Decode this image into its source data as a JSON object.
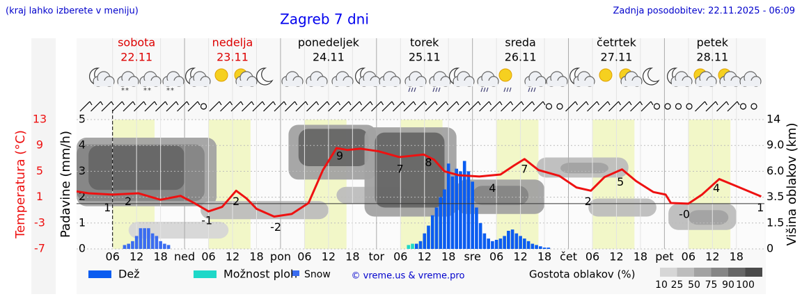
{
  "header": {
    "note": "(kraj lahko izberete v meniju)",
    "title": "Zagreb 7 dni",
    "updated": "Zadnja posodobitev: 22.11.2025 - 06:09",
    "copyright": "© vreme.us & vreme.pro"
  },
  "days": [
    {
      "name": "sobota",
      "date": "22.11",
      "color": "#dd0000"
    },
    {
      "name": "nedelja",
      "date": "23.11",
      "color": "#dd0000"
    },
    {
      "name": "ponedeljek",
      "date": "24.11",
      "color": "#000000"
    },
    {
      "name": "torek",
      "date": "25.11",
      "color": "#000000"
    },
    {
      "name": "sreda",
      "date": "26.11",
      "color": "#000000"
    },
    {
      "name": "četrtek",
      "date": "27.11",
      "color": "#000000"
    },
    {
      "name": "petek",
      "date": "28.11",
      "color": "#000000"
    }
  ],
  "chart_data": [
    {
      "type": "bar",
      "ylabel": "Padavine (mm/h)",
      "xlim": [
        -3,
        169
      ],
      "ylim": [
        0,
        5
      ],
      "yticks": [
        0,
        1,
        2,
        3,
        4,
        5
      ],
      "grid": true,
      "now": 6,
      "daylight": [
        [
          6,
          16.5
        ],
        [
          30,
          40.5
        ],
        [
          54,
          64.5
        ],
        [
          78,
          88.5
        ],
        [
          102,
          112.5
        ],
        [
          126,
          136.5
        ],
        [
          150,
          160.5
        ]
      ],
      "xticks": [
        {
          "value": 6,
          "label": "06"
        },
        12,
        18,
        {
          "value": 24,
          "label": "ned"
        },
        {
          "value": 30,
          "label": "06"
        },
        {
          "value": 36,
          "label": "12"
        },
        {
          "value": 42,
          "label": "18"
        },
        {
          "value": 48,
          "label": "pon"
        },
        {
          "value": 54,
          "label": "06"
        },
        {
          "value": 60,
          "label": "12"
        },
        {
          "value": 66,
          "label": "18"
        },
        {
          "value": 72,
          "label": "tor"
        },
        {
          "value": 78,
          "label": "06"
        },
        {
          "value": 84,
          "label": "12"
        },
        {
          "value": 90,
          "label": "18"
        },
        {
          "value": 96,
          "label": "sre"
        },
        {
          "value": 102,
          "label": "06"
        },
        {
          "value": 108,
          "label": "12"
        },
        {
          "value": 114,
          "label": "18"
        },
        {
          "value": 120,
          "label": "čet"
        },
        {
          "value": 126,
          "label": "06"
        },
        {
          "value": 132,
          "label": "12"
        },
        {
          "value": 138,
          "label": "18"
        },
        {
          "value": 144,
          "label": "pet"
        },
        {
          "value": 150,
          "label": "06"
        },
        {
          "value": 156,
          "label": "12"
        },
        {
          "value": 162,
          "label": "18"
        }
      ],
      "x": [
        9,
        10,
        11,
        12,
        13,
        14,
        15,
        16,
        17,
        18,
        19,
        20,
        80,
        81,
        82,
        83,
        84,
        85,
        86,
        87,
        88,
        89,
        90,
        91,
        92,
        93,
        94,
        95,
        96,
        97,
        98,
        99,
        100,
        101,
        102,
        103,
        104,
        105,
        106,
        107,
        108,
        109,
        110,
        111,
        112,
        113,
        114,
        115
      ],
      "series": [
        {
          "name": "Dež",
          "color": "#0a5cf0",
          "values": [
            null,
            null,
            null,
            null,
            null,
            null,
            null,
            null,
            null,
            null,
            null,
            null,
            null,
            null,
            0.2,
            0.3,
            0.6,
            0.9,
            1.3,
            1.6,
            2.0,
            2.3,
            3.3,
            2.8,
            3.1,
            3.0,
            3.4,
            3.0,
            2.6,
            1.6,
            1.0,
            0.6,
            0.4,
            0.3,
            0.35,
            0.4,
            0.5,
            0.7,
            0.75,
            0.6,
            0.5,
            0.4,
            0.3,
            0.2,
            0.15,
            0.1,
            0.05,
            0.05
          ]
        },
        {
          "name": "Možnost ploh",
          "color": "#1ed8c8",
          "values": [
            null,
            null,
            null,
            null,
            null,
            null,
            null,
            null,
            null,
            null,
            null,
            null,
            0.15,
            0.2,
            null,
            null,
            null,
            null,
            null,
            null,
            null,
            null,
            null,
            null,
            null,
            null,
            null,
            null,
            null,
            null,
            null,
            null,
            null,
            null,
            null,
            null,
            null,
            null,
            null,
            null,
            null,
            null,
            null,
            null,
            null,
            null,
            null,
            null
          ]
        },
        {
          "name": "Snow",
          "color": "#3a6cf0",
          "values": [
            0.15,
            0.2,
            0.3,
            0.5,
            0.8,
            0.8,
            0.8,
            0.6,
            0.5,
            0.3,
            0.2,
            0.15,
            null,
            null,
            null,
            null,
            null,
            null,
            null,
            null,
            null,
            null,
            null,
            null,
            null,
            null,
            null,
            null,
            null,
            null,
            null,
            null,
            null,
            null,
            null,
            null,
            null,
            null,
            null,
            null,
            null,
            null,
            null,
            null,
            null,
            null,
            null,
            null
          ]
        }
      ]
    },
    {
      "type": "line",
      "ylabel": "Temperatura (°C)",
      "color": "#ee1111",
      "ylim": [
        -7,
        13
      ],
      "yticks": [
        -7,
        -3,
        1,
        5,
        9,
        13
      ],
      "zero_line": 0,
      "x": [
        -3,
        0,
        6,
        12.5,
        18,
        23,
        26.4,
        30,
        33.4,
        36.9,
        39.5,
        42,
        46.4,
        50.8,
        55,
        58.6,
        62,
        64.7,
        68,
        72.5,
        77.7,
        83.8,
        86.4,
        89,
        92.5,
        97.7,
        103,
        106.4,
        109,
        112.5,
        117.7,
        122,
        125.6,
        129,
        133.4,
        136.9,
        141.2,
        144.3,
        145.6,
        150,
        153.4,
        157.7,
        162,
        168.2
      ],
      "values": [
        1.9,
        1.6,
        1.4,
        1.6,
        0.6,
        1.2,
        0.1,
        -1.2,
        -0.5,
        2.0,
        0.8,
        -0.8,
        -2.0,
        -1.6,
        0.1,
        5.2,
        8.6,
        8.3,
        8.5,
        8.1,
        7.2,
        7.6,
        6.8,
        5.0,
        4.4,
        4.2,
        4.5,
        5.9,
        6.9,
        5.2,
        4.3,
        2.5,
        2.0,
        4.1,
        5.3,
        3.5,
        1.8,
        1.4,
        0.1,
        0.0,
        1.4,
        3.8,
        2.7,
        1.1
      ],
      "point_labels": [
        {
          "x": 4.7,
          "value": 1
        },
        {
          "x": 9.9,
          "value": 2
        },
        {
          "x": 29.6,
          "value": -1
        },
        {
          "x": 36.9,
          "value": 2
        },
        {
          "x": 46.8,
          "value": -2
        },
        {
          "x": 62.8,
          "value": 9
        },
        {
          "x": 77.9,
          "value": 7
        },
        {
          "x": 85,
          "value": 8
        },
        {
          "x": 101,
          "value": 4
        },
        {
          "x": 109,
          "value": 7
        },
        {
          "x": 124.9,
          "value": 2
        },
        {
          "x": 133,
          "value": 5
        },
        {
          "x": 149,
          "value": 0,
          "label": "-0"
        },
        {
          "x": 157,
          "value": 4
        },
        {
          "x": 168,
          "value": 1
        }
      ]
    },
    {
      "type": "cloud",
      "ylabel": "Višina oblakov (km)",
      "legend_title": "Gostota oblakov (%)",
      "y2lim": [
        0,
        14
      ],
      "y2ticks": [
        0,
        1.5,
        3.5,
        {
          "value": 6,
          "label": "6.0"
        },
        {
          "value": 9,
          "label": "9.0"
        },
        14
      ],
      "scale": [
        {
          "value": 10,
          "color": "#d6d6d6"
        },
        {
          "value": 25,
          "color": "#bdbdbd"
        },
        {
          "value": 50,
          "color": "#a2a2a2"
        },
        {
          "value": 75,
          "color": "#858585"
        },
        {
          "value": 90,
          "color": "#666666"
        },
        {
          "value": 100,
          "color": "#4a4a4a"
        }
      ],
      "patches": [
        {
          "x0": -3,
          "x1": 32,
          "y0": 2.8,
          "y1": 10.5,
          "density": 50
        },
        {
          "x0": -3,
          "x1": 29,
          "y0": 3.2,
          "y1": 9.2,
          "density": 75
        },
        {
          "x0": 0,
          "x1": 24,
          "y0": 4.2,
          "y1": 9.0,
          "density": 90
        },
        {
          "x0": 28,
          "x1": 60,
          "y0": 1.8,
          "y1": 3.2,
          "density": 25
        },
        {
          "x0": 50,
          "x1": 72,
          "y0": 5.2,
          "y1": 13,
          "density": 50
        },
        {
          "x0": 52.5,
          "x1": 70,
          "y0": 6.6,
          "y1": 12.2,
          "density": 90
        },
        {
          "x0": 62,
          "x1": 80,
          "y0": 3.0,
          "y1": 4.5,
          "density": 25
        },
        {
          "x0": 69,
          "x1": 92,
          "y0": 2.0,
          "y1": 12.5,
          "density": 50
        },
        {
          "x0": 71.6,
          "x1": 89,
          "y0": 2.7,
          "y1": 11.5,
          "density": 90
        },
        {
          "x0": 92,
          "x1": 114,
          "y0": 2.2,
          "y1": 5.2,
          "density": 50
        },
        {
          "x0": 96,
          "x1": 110,
          "y0": 2.9,
          "y1": 4.6,
          "density": 75
        },
        {
          "x0": 112,
          "x1": 135,
          "y0": 5.4,
          "y1": 7.6,
          "density": 25
        },
        {
          "x0": 118,
          "x1": 130,
          "y0": 5.8,
          "y1": 7.0,
          "density": 50
        },
        {
          "x0": 125,
          "x1": 142,
          "y0": 2.0,
          "y1": 3.4,
          "density": 25
        },
        {
          "x0": 145,
          "x1": 162,
          "y0": 1.1,
          "y1": 3.0,
          "density": 25
        },
        {
          "x0": 150,
          "x1": 160,
          "y0": 1.4,
          "y1": 2.5,
          "density": 50
        },
        {
          "x0": 10,
          "x1": 35,
          "y0": 0.6,
          "y1": 1.6,
          "density": 10
        }
      ]
    }
  ]
}
